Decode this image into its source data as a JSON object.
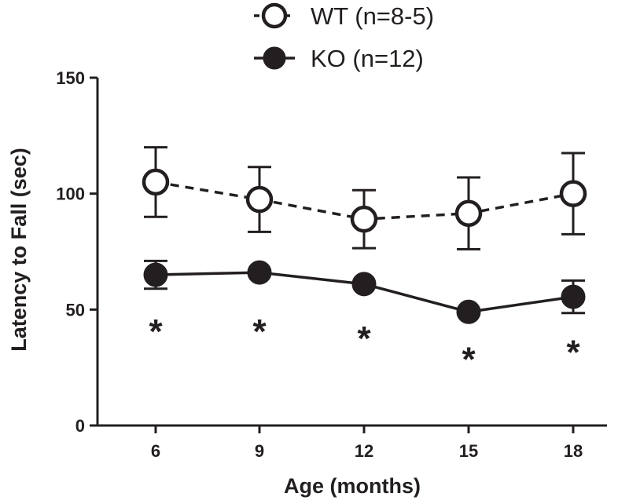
{
  "chart_data": {
    "type": "line",
    "title": "",
    "xlabel": "Age (months)",
    "ylabel": "Latency to Fall (sec)",
    "x": [
      6,
      9,
      12,
      15,
      18
    ],
    "x_tick_labels": [
      "6",
      "9",
      "12",
      "15",
      "18"
    ],
    "y_ticks": [
      0,
      50,
      100,
      150
    ],
    "y_tick_labels": [
      "0",
      "50",
      "100",
      "150"
    ],
    "ylim": [
      0,
      150
    ],
    "legend_position": "top-center",
    "series": [
      {
        "name": "WT (n=8-5)",
        "marker": "open-circle",
        "line_style": "dashed",
        "values": [
          105,
          97.5,
          89,
          91.5,
          100
        ],
        "error": [
          15,
          14,
          12.5,
          15.5,
          17.5
        ]
      },
      {
        "name": "KO (n=12)",
        "marker": "filled-circle",
        "line_style": "solid",
        "values": [
          65,
          66,
          61,
          49,
          55.5
        ],
        "error": [
          6,
          0,
          0,
          0,
          7
        ]
      }
    ],
    "significance_markers": [
      {
        "x": 6,
        "label": "*",
        "y": 41
      },
      {
        "x": 9,
        "label": "*",
        "y": 41
      },
      {
        "x": 12,
        "label": "*",
        "y": 38
      },
      {
        "x": 15,
        "label": "*",
        "y": 29
      },
      {
        "x": 18,
        "label": "*",
        "y": 32
      }
    ],
    "colors": {
      "ink": "#231f20",
      "fill_open": "#ffffff"
    }
  }
}
